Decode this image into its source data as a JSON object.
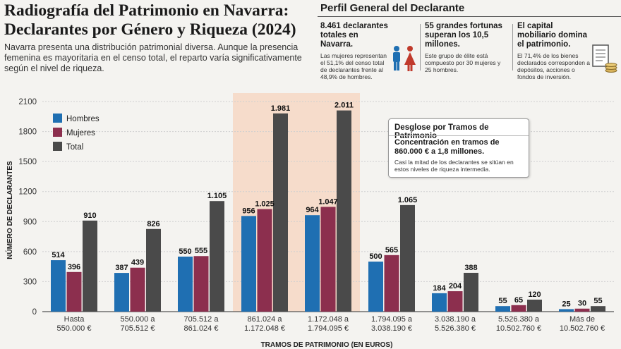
{
  "header": {
    "title": "Radiografía del Patrimonio en Navarra: Declarantes por Género y Riqueza (2024)",
    "subtitle": "Navarra presenta una distribución patrimonial diversa. Aunque la presencia femenina es mayoritaria en el censo total, el reparto varía significativamente según el nivel de riqueza."
  },
  "profile": {
    "title": "Perfil General del Declarante",
    "stats": [
      {
        "head": "8.461 declarantes totales en Navarra.",
        "body": "Las mujeres representan el 51,1% del censo total de declarantes frente al 48,9% de hombres.",
        "icon": "people-icon"
      },
      {
        "head": "55 grandes fortunas superan los 10,5 millones.",
        "body": "Este grupo de élite está compuesto por 30 mujeres y 25 hombres.",
        "icon": ""
      },
      {
        "head": "El capital mobiliario domina el patrimonio.",
        "body": "El 71,4% de los bienes declarados corresponden a depósitos, acciones o fondos de inversión.",
        "icon": "document-coins-icon"
      }
    ]
  },
  "callout": {
    "title": "Desglose por Tramos de Patrimonio",
    "headline": "Concentración en tramos de 860.000 € a 1,8 millones.",
    "body": "Casi la mitad de los declarantes se sitúan en estos niveles de riqueza intermedia."
  },
  "colors": {
    "hombres": "#1f6fb2",
    "mujeres": "#8c2f4e",
    "total": "#4a4a4a",
    "highlight": "#f6dccb"
  },
  "chart_data": {
    "type": "bar",
    "title": "",
    "xlabel": "TRAMOS DE PATRIMONIO (EN EUROS)",
    "ylabel": "NÚMERO DE DECLARANTES",
    "ylim": [
      0,
      2100
    ],
    "yticks": [
      0,
      300,
      600,
      900,
      1200,
      1500,
      1800,
      2100
    ],
    "ytick_labels": [
      "0",
      "300",
      "600",
      "900",
      "1200",
      "1500",
      "1800",
      "2100"
    ],
    "legend_position": "top-left",
    "grid": true,
    "highlighted_categories": [
      3,
      4
    ],
    "categories": [
      [
        "Hasta",
        "550.000 €"
      ],
      [
        "550.000 a",
        "705.512 €"
      ],
      [
        "705.512 a",
        "861.024 €"
      ],
      [
        "861.024 a",
        "1.172.048 €"
      ],
      [
        "1.172.048 a",
        "1.794.095 €"
      ],
      [
        "1.794.095 a",
        "3.038.190 €"
      ],
      [
        "3.038.190 a",
        "5.526.380 €"
      ],
      [
        "5.526.380 a",
        "10.502.760 €"
      ],
      [
        "Más de",
        "10.502.760 €"
      ]
    ],
    "series": [
      {
        "name": "Hombres",
        "values": [
          514,
          387,
          550,
          956,
          964,
          500,
          184,
          55,
          25
        ],
        "labels": [
          "514",
          "387",
          "550",
          "956",
          "964",
          "500",
          "184",
          "55",
          "25"
        ]
      },
      {
        "name": "Mujeres",
        "values": [
          396,
          439,
          555,
          1025,
          1047,
          565,
          204,
          65,
          30
        ],
        "labels": [
          "396",
          "439",
          "555",
          "1.025",
          "1.047",
          "565",
          "204",
          "65",
          "30"
        ]
      },
      {
        "name": "Total",
        "values": [
          910,
          826,
          1105,
          1981,
          2011,
          1065,
          388,
          120,
          55
        ],
        "labels": [
          "910",
          "826",
          "1.105",
          "1.981",
          "2.011",
          "1.065",
          "388",
          "120",
          "55"
        ]
      }
    ]
  }
}
